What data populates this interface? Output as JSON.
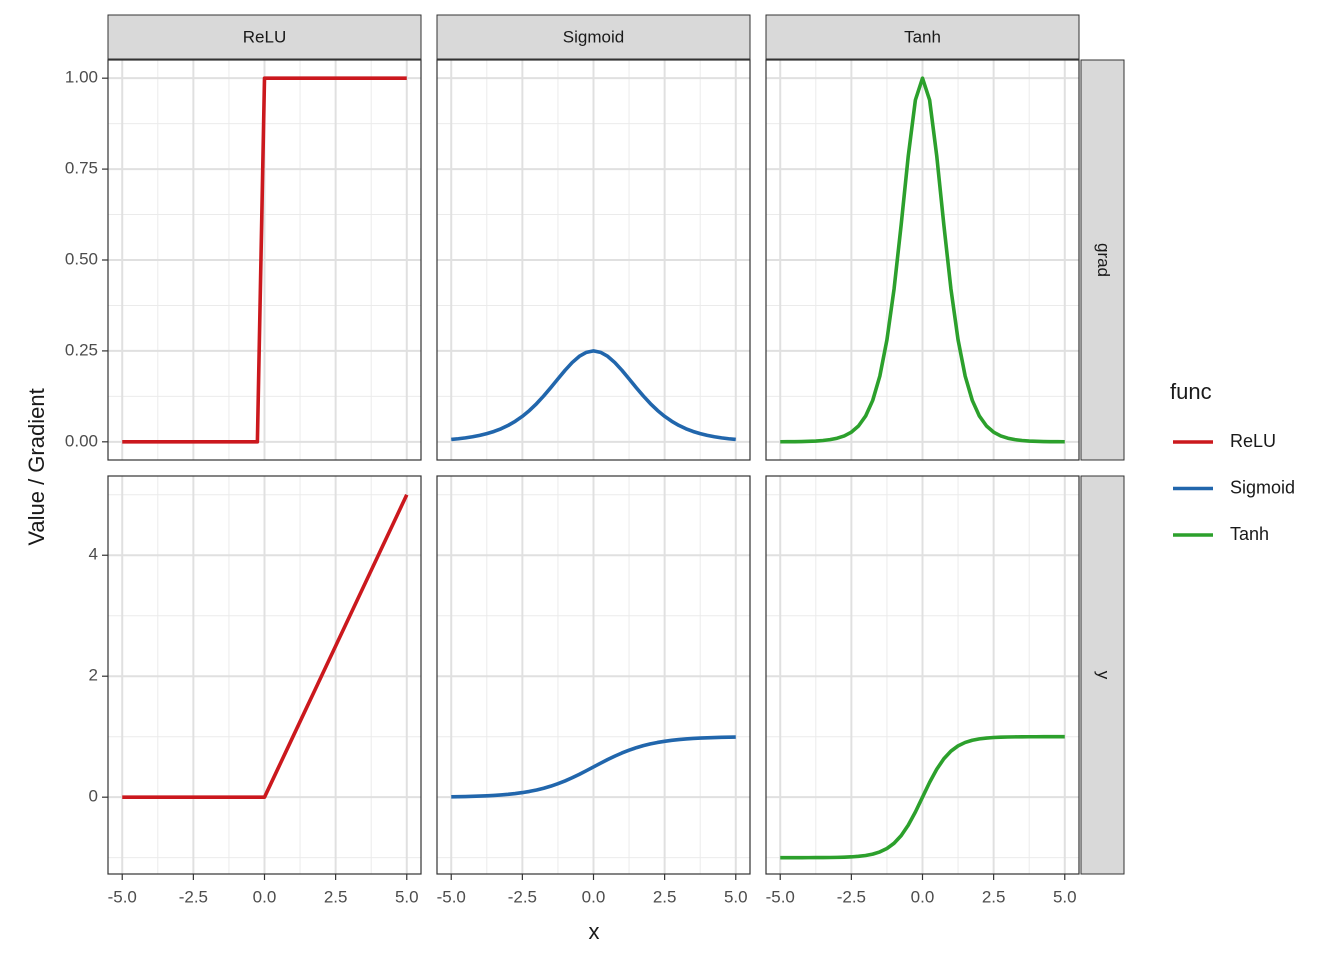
{
  "chart_data": {
    "type": "line",
    "xlabel": "x",
    "ylabel": "Value / Gradient",
    "legend_title": "func",
    "legend_position": "right",
    "grid": true,
    "x": [
      -5,
      -4.75,
      -4.5,
      -4.25,
      -4,
      -3.75,
      -3.5,
      -3.25,
      -3,
      -2.75,
      -2.5,
      -2.25,
      -2,
      -1.75,
      -1.5,
      -1.25,
      -1,
      -0.75,
      -0.5,
      -0.25,
      0,
      0.25,
      0.5,
      0.75,
      1,
      1.25,
      1.5,
      1.75,
      2,
      2.25,
      2.5,
      2.75,
      3,
      3.25,
      3.5,
      3.75,
      4,
      4.25,
      4.5,
      4.75,
      5
    ],
    "xlim": [
      -5.5,
      5.5
    ],
    "xticks": [
      {
        "value": -5,
        "label": "-5.0"
      },
      -2.5,
      {
        "value": 0,
        "label": "0.0"
      },
      2.5,
      {
        "value": 5,
        "label": "5.0"
      }
    ],
    "rows": [
      {
        "label": "grad",
        "ylim": [
          -0.05,
          1.05
        ],
        "yticks": [
          {
            "value": 0,
            "label": "0.00"
          },
          {
            "value": 0.25,
            "label": "0.25"
          },
          {
            "value": 0.5,
            "label": "0.50"
          },
          {
            "value": 0.75,
            "label": "0.75"
          },
          {
            "value": 1,
            "label": "1.00"
          }
        ]
      },
      {
        "label": "y",
        "ylim": [
          -1.27,
          5.31
        ],
        "yticks": [
          0,
          2,
          4
        ]
      }
    ],
    "series": [
      {
        "name": "ReLU",
        "color": "#cb181d",
        "values": [
          [
            0,
            0,
            0,
            0,
            0,
            0,
            0,
            0,
            0,
            0,
            0,
            0,
            0,
            0,
            0,
            0,
            0,
            0,
            0,
            0,
            1,
            1,
            1,
            1,
            1,
            1,
            1,
            1,
            1,
            1,
            1,
            1,
            1,
            1,
            1,
            1,
            1,
            1,
            1,
            1,
            1
          ],
          [
            0,
            0,
            0,
            0,
            0,
            0,
            0,
            0,
            0,
            0,
            0,
            0,
            0,
            0,
            0,
            0,
            0,
            0,
            0,
            0,
            0,
            0.25,
            0.5,
            0.75,
            1,
            1.25,
            1.5,
            1.75,
            2,
            2.25,
            2.5,
            2.75,
            3,
            3.25,
            3.5,
            3.75,
            4,
            4.25,
            4.5,
            4.75,
            5
          ]
        ]
      },
      {
        "name": "Sigmoid",
        "color": "#2166ac",
        "values": [
          [
            0.0066,
            0.0085,
            0.0109,
            0.0139,
            0.0177,
            0.0225,
            0.0284,
            0.0359,
            0.0452,
            0.0565,
            0.0701,
            0.0862,
            0.105,
            0.1261,
            0.1491,
            0.1731,
            0.1966,
            0.2179,
            0.235,
            0.2461,
            0.25,
            0.2461,
            0.235,
            0.2179,
            0.1966,
            0.1731,
            0.1491,
            0.1261,
            0.105,
            0.0862,
            0.0701,
            0.0565,
            0.0452,
            0.0359,
            0.0284,
            0.0225,
            0.0177,
            0.0139,
            0.0109,
            0.0085,
            0.0066
          ],
          [
            0.0067,
            0.0086,
            0.011,
            0.0141,
            0.018,
            0.023,
            0.0293,
            0.0373,
            0.0474,
            0.0601,
            0.0759,
            0.0953,
            0.1192,
            0.148,
            0.1824,
            0.2227,
            0.2689,
            0.3208,
            0.3775,
            0.4378,
            0.5,
            0.5622,
            0.6225,
            0.6792,
            0.7311,
            0.7773,
            0.8176,
            0.852,
            0.8808,
            0.9047,
            0.9241,
            0.9399,
            0.9526,
            0.9627,
            0.9707,
            0.977,
            0.982,
            0.9859,
            0.989,
            0.9914,
            0.9933
          ]
        ]
      },
      {
        "name": "Tanh",
        "color": "#2ca02c",
        "values": [
          [
            0.0002,
            0.0003,
            0.0005,
            0.0008,
            0.0013,
            0.0022,
            0.0036,
            0.006,
            0.0099,
            0.0161,
            0.0266,
            0.0435,
            0.0707,
            0.1138,
            0.1807,
            0.2804,
            0.42,
            0.5966,
            0.7864,
            0.94,
            1,
            0.94,
            0.7864,
            0.5966,
            0.42,
            0.2804,
            0.1807,
            0.1138,
            0.0707,
            0.0435,
            0.0266,
            0.0161,
            0.0099,
            0.006,
            0.0036,
            0.0022,
            0.0013,
            0.0008,
            0.0005,
            0.0003,
            0.0002
          ],
          [
            -0.9999,
            -0.9999,
            -0.9998,
            -0.9996,
            -0.9993,
            -0.9989,
            -0.9982,
            -0.997,
            -0.9951,
            -0.9919,
            -0.9866,
            -0.978,
            -0.964,
            -0.9414,
            -0.9051,
            -0.8483,
            -0.7616,
            -0.6351,
            -0.4621,
            -0.2449,
            0,
            0.2449,
            0.4621,
            0.6351,
            0.7616,
            0.8483,
            0.9051,
            0.9414,
            0.964,
            0.978,
            0.9866,
            0.9919,
            0.9951,
            0.997,
            0.9982,
            0.9989,
            0.9993,
            0.9996,
            0.9998,
            0.9999,
            0.9999
          ]
        ]
      }
    ]
  }
}
